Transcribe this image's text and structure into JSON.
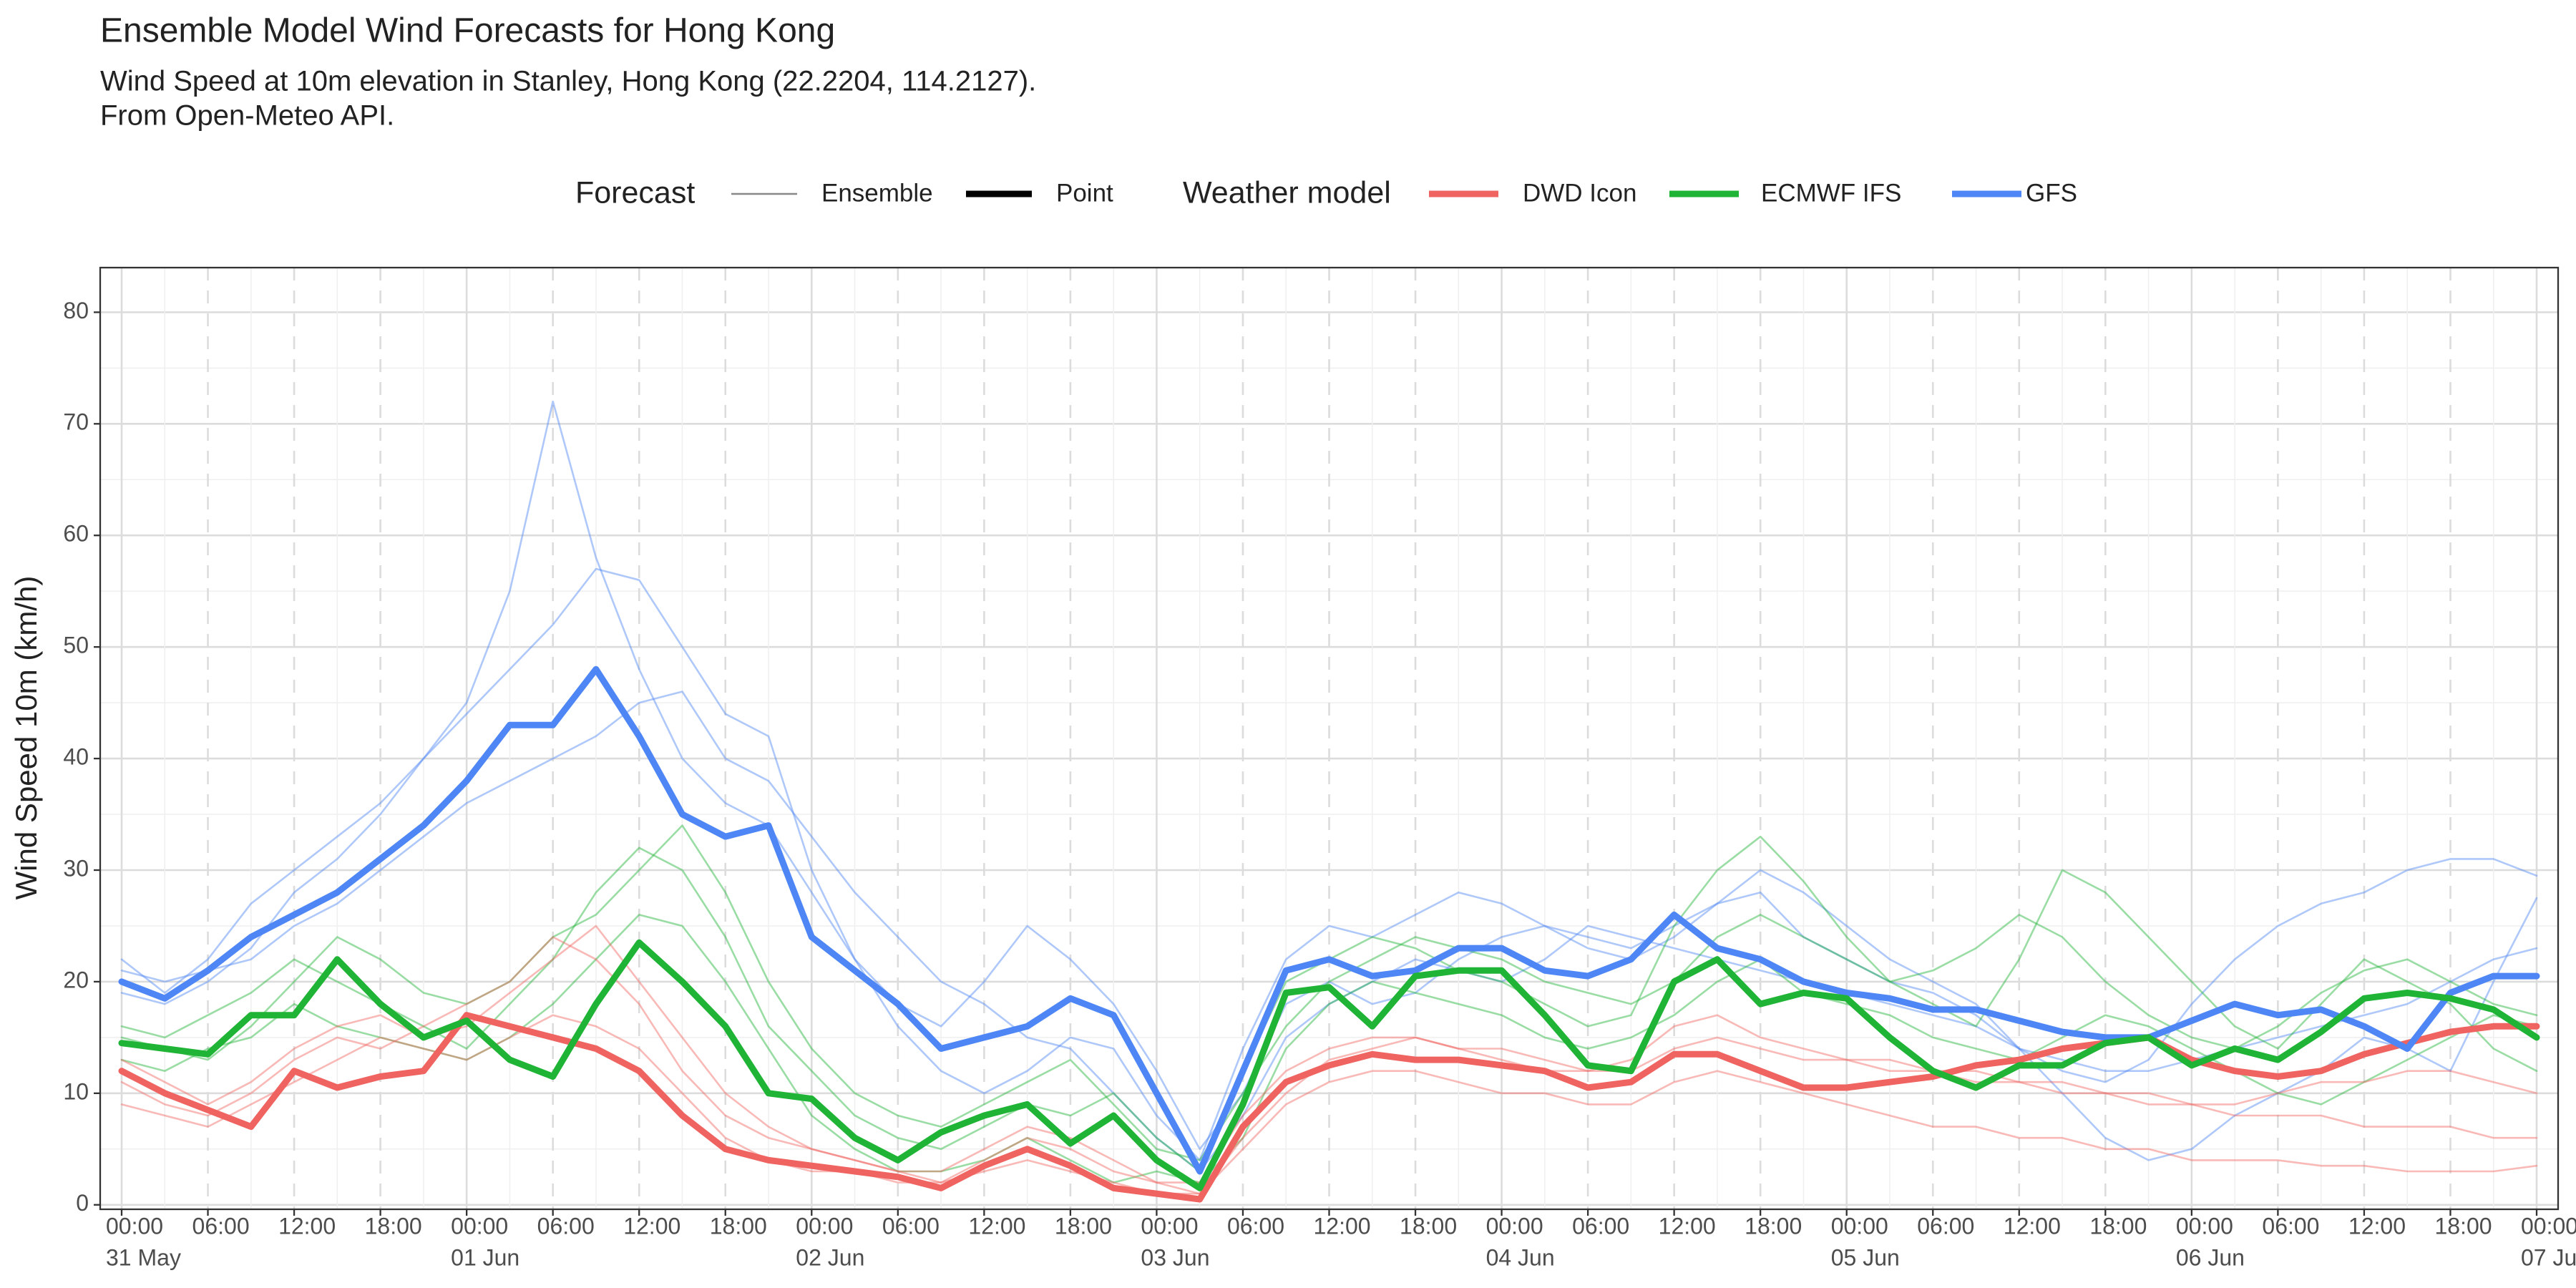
{
  "chart_data": {
    "type": "line",
    "title": "Ensemble Model Wind Forecasts for Hong Kong",
    "subtitle": [
      "Wind Speed at 10m elevation in Stanley, Hong Kong (22.2204, 114.2127).",
      "From Open-Meteo API."
    ],
    "y_label": "Wind Speed 10m (km/h)",
    "legend": {
      "forecast": {
        "title": "Forecast",
        "items": [
          "Ensemble",
          "Point"
        ]
      },
      "model": {
        "title": "Weather model",
        "items": [
          {
            "name": "DWD Icon",
            "color": "#ef6360"
          },
          {
            "name": "ECMWF IFS",
            "color": "#1fb436"
          },
          {
            "name": "GFS",
            "color": "#4e86f5"
          }
        ]
      }
    },
    "x": [
      "31 May 00:00",
      "31 May 03:00",
      "31 May 06:00",
      "31 May 09:00",
      "31 May 12:00",
      "31 May 15:00",
      "31 May 18:00",
      "31 May 21:00",
      "01 Jun 00:00",
      "01 Jun 03:00",
      "01 Jun 06:00",
      "01 Jun 09:00",
      "01 Jun 12:00",
      "01 Jun 15:00",
      "01 Jun 18:00",
      "01 Jun 21:00",
      "02 Jun 00:00",
      "02 Jun 03:00",
      "02 Jun 06:00",
      "02 Jun 09:00",
      "02 Jun 12:00",
      "02 Jun 15:00",
      "02 Jun 18:00",
      "02 Jun 21:00",
      "03 Jun 00:00",
      "03 Jun 03:00",
      "03 Jun 06:00",
      "03 Jun 09:00",
      "03 Jun 12:00",
      "03 Jun 15:00",
      "03 Jun 18:00",
      "03 Jun 21:00",
      "04 Jun 00:00",
      "04 Jun 03:00",
      "04 Jun 06:00",
      "04 Jun 09:00",
      "04 Jun 12:00",
      "04 Jun 15:00",
      "04 Jun 18:00",
      "04 Jun 21:00",
      "05 Jun 00:00",
      "05 Jun 03:00",
      "05 Jun 06:00",
      "05 Jun 09:00",
      "05 Jun 12:00",
      "05 Jun 15:00",
      "05 Jun 18:00",
      "05 Jun 21:00",
      "06 Jun 00:00",
      "06 Jun 03:00",
      "06 Jun 06:00",
      "06 Jun 09:00",
      "06 Jun 12:00",
      "06 Jun 15:00",
      "06 Jun 18:00",
      "06 Jun 21:00",
      "07 Jun 00:00"
    ],
    "xticks": [
      {
        "value": "31 May 00:00",
        "label": "00:00"
      },
      {
        "value": "31 May 06:00",
        "label": "06:00"
      },
      {
        "value": "31 May 12:00",
        "label": "12:00"
      },
      {
        "value": "31 May 18:00",
        "label": "18:00"
      },
      {
        "value": "01 Jun 00:00",
        "label": "00:00"
      },
      {
        "value": "01 Jun 06:00",
        "label": "06:00"
      },
      {
        "value": "01 Jun 12:00",
        "label": "12:00"
      },
      {
        "value": "01 Jun 18:00",
        "label": "18:00"
      },
      {
        "value": "02 Jun 00:00",
        "label": "00:00"
      },
      {
        "value": "02 Jun 06:00",
        "label": "06:00"
      },
      {
        "value": "02 Jun 12:00",
        "label": "12:00"
      },
      {
        "value": "02 Jun 18:00",
        "label": "18:00"
      },
      {
        "value": "03 Jun 00:00",
        "label": "00:00"
      },
      {
        "value": "03 Jun 06:00",
        "label": "06:00"
      },
      {
        "value": "03 Jun 12:00",
        "label": "12:00"
      },
      {
        "value": "03 Jun 18:00",
        "label": "18:00"
      },
      {
        "value": "04 Jun 00:00",
        "label": "00:00"
      },
      {
        "value": "04 Jun 06:00",
        "label": "06:00"
      },
      {
        "value": "04 Jun 12:00",
        "label": "12:00"
      },
      {
        "value": "04 Jun 18:00",
        "label": "18:00"
      },
      {
        "value": "05 Jun 00:00",
        "label": "00:00"
      },
      {
        "value": "05 Jun 06:00",
        "label": "06:00"
      },
      {
        "value": "05 Jun 12:00",
        "label": "12:00"
      },
      {
        "value": "05 Jun 18:00",
        "label": "18:00"
      },
      {
        "value": "06 Jun 00:00",
        "label": "00:00"
      },
      {
        "value": "06 Jun 06:00",
        "label": "06:00"
      },
      {
        "value": "06 Jun 12:00",
        "label": "12:00"
      },
      {
        "value": "06 Jun 18:00",
        "label": "18:00"
      },
      {
        "value": "07 Jun 00:00",
        "label": "00:00"
      }
    ],
    "x_date_labels": [
      {
        "value": "31 May 00:00",
        "label": "31 May"
      },
      {
        "value": "01 Jun 00:00",
        "label": "01 Jun"
      },
      {
        "value": "02 Jun 00:00",
        "label": "02 Jun"
      },
      {
        "value": "03 Jun 00:00",
        "label": "03 Jun"
      },
      {
        "value": "04 Jun 00:00",
        "label": "04 Jun"
      },
      {
        "value": "05 Jun 00:00",
        "label": "05 Jun"
      },
      {
        "value": "06 Jun 00:00",
        "label": "06 Jun"
      },
      {
        "value": "07 Jun 00:00",
        "label": "07 Jun"
      }
    ],
    "ylim": [
      -0.4,
      84
    ],
    "yticks": [
      0,
      10,
      20,
      30,
      40,
      50,
      60,
      70,
      80
    ],
    "grid": true,
    "series": [
      {
        "name": "GFS",
        "forecast": "Ensemble",
        "color": "#4e86f5",
        "values": [
          22,
          19,
          22,
          27,
          30,
          33,
          36,
          40,
          45,
          55,
          72,
          58,
          48,
          40,
          36,
          34,
          28,
          22,
          16,
          12,
          10,
          12,
          15,
          14,
          8,
          4,
          14,
          22,
          25,
          24,
          26,
          28,
          27,
          25,
          24,
          23,
          25,
          27,
          28,
          24,
          22,
          20,
          19,
          17,
          14,
          12,
          11,
          13,
          18,
          22,
          25,
          27,
          28,
          30,
          31,
          31,
          29.5
        ]
      },
      {
        "name": "GFS",
        "forecast": "Ensemble",
        "color": "#4e86f5",
        "values": [
          19,
          18,
          20,
          23,
          28,
          31,
          35,
          40,
          44,
          48,
          52,
          57,
          56,
          50,
          44,
          42,
          30,
          22,
          18,
          16,
          20,
          25,
          22,
          18,
          12,
          5,
          10,
          18,
          20,
          18,
          19,
          22,
          24,
          25,
          23,
          22,
          24,
          27,
          30,
          28,
          25,
          22,
          20,
          18,
          14,
          10,
          6,
          4,
          5,
          8,
          10,
          12,
          15,
          14,
          12,
          20,
          27.5
        ]
      },
      {
        "name": "GFS",
        "forecast": "Ensemble",
        "color": "#4e86f5",
        "values": [
          21,
          20,
          21,
          22,
          25,
          27,
          30,
          33,
          36,
          38,
          40,
          42,
          45,
          46,
          40,
          38,
          33,
          28,
          24,
          20,
          18,
          15,
          14,
          10,
          6,
          3,
          8,
          15,
          18,
          20,
          22,
          21,
          20,
          22,
          25,
          24,
          23,
          22,
          21,
          20,
          19,
          18,
          17,
          16,
          14,
          13,
          12,
          12,
          13,
          14,
          15,
          16,
          17,
          18,
          20,
          22,
          23
        ]
      },
      {
        "name": "ECMWF IFS",
        "forecast": "Ensemble",
        "color": "#1fb436",
        "values": [
          16,
          15,
          17,
          19,
          22,
          20,
          18,
          16,
          14,
          18,
          22,
          28,
          32,
          30,
          24,
          16,
          12,
          8,
          6,
          5,
          7,
          9,
          8,
          10,
          6,
          3,
          12,
          20,
          22,
          24,
          23,
          21,
          20,
          18,
          16,
          17,
          25,
          30,
          33,
          29,
          24,
          20,
          18,
          16,
          22,
          30,
          28,
          24,
          20,
          16,
          14,
          18,
          22,
          20,
          18,
          14,
          12
        ]
      },
      {
        "name": "ECMWF IFS",
        "forecast": "Ensemble",
        "color": "#1fb436",
        "values": [
          13,
          12,
          14,
          15,
          18,
          16,
          15,
          14,
          13,
          15,
          18,
          22,
          26,
          25,
          20,
          14,
          8,
          5,
          3,
          3,
          4,
          6,
          4,
          2,
          3,
          2,
          6,
          14,
          18,
          20,
          19,
          18,
          17,
          15,
          14,
          15,
          17,
          20,
          22,
          19,
          18,
          17,
          15,
          14,
          13,
          15,
          17,
          16,
          14,
          12,
          10,
          9,
          11,
          13,
          15,
          17,
          16
        ]
      },
      {
        "name": "ECMWF IFS",
        "forecast": "Ensemble",
        "color": "#1fb436",
        "values": [
          15,
          14,
          13,
          16,
          20,
          24,
          22,
          19,
          18,
          20,
          24,
          26,
          30,
          34,
          28,
          20,
          14,
          10,
          8,
          7,
          9,
          11,
          13,
          9,
          5,
          4,
          10,
          16,
          20,
          22,
          24,
          23,
          22,
          20,
          19,
          18,
          20,
          24,
          26,
          24,
          22,
          20,
          21,
          23,
          26,
          24,
          20,
          17,
          15,
          14,
          16,
          19,
          21,
          22,
          20,
          18,
          17
        ]
      },
      {
        "name": "DWD Icon",
        "forecast": "Ensemble",
        "color": "#ef6360",
        "values": [
          11,
          9,
          8,
          10,
          13,
          15,
          14,
          16,
          18,
          20,
          24,
          22,
          18,
          12,
          8,
          6,
          5,
          4,
          3,
          2,
          3,
          4,
          3,
          2,
          1,
          1,
          5,
          9,
          11,
          12,
          12,
          11,
          10,
          10,
          9,
          9,
          11,
          12,
          11,
          10,
          9,
          8,
          7,
          7,
          6,
          6,
          5,
          5,
          4,
          4,
          4,
          3.5,
          3.5,
          3,
          3,
          3,
          3.5
        ]
      },
      {
        "name": "DWD Icon",
        "forecast": "Ensemble",
        "color": "#ef6360",
        "values": [
          9,
          8,
          7,
          9,
          11,
          13,
          15,
          14,
          13,
          15,
          17,
          16,
          14,
          10,
          6,
          4,
          3,
          3,
          2,
          2,
          4,
          6,
          5,
          3,
          2,
          1,
          6,
          10,
          13,
          14,
          15,
          14,
          13,
          12,
          12,
          13,
          16,
          17,
          15,
          14,
          13,
          12,
          12,
          11,
          11,
          10,
          10,
          9,
          9,
          8,
          8,
          8,
          7,
          7,
          7,
          6,
          6
        ]
      },
      {
        "name": "DWD Icon",
        "forecast": "Ensemble",
        "color": "#ef6360",
        "values": [
          13,
          11,
          9,
          11,
          14,
          16,
          17,
          15,
          16,
          19,
          22,
          25,
          20,
          15,
          10,
          7,
          5,
          4,
          3,
          3,
          5,
          7,
          6,
          4,
          2,
          2,
          8,
          12,
          14,
          15,
          15,
          14,
          14,
          13,
          12,
          12,
          14,
          15,
          14,
          13,
          13,
          13,
          12,
          12,
          11,
          11,
          10,
          10,
          9,
          9,
          10,
          11,
          11,
          12,
          12,
          11,
          10
        ]
      },
      {
        "name": "DWD Icon",
        "forecast": "Point",
        "color": "#ef6360",
        "values": [
          12,
          10,
          8.5,
          7,
          12,
          10.5,
          11.5,
          12,
          17,
          16,
          15,
          14,
          12,
          8,
          5,
          4,
          3.5,
          3,
          2.5,
          1.5,
          3.5,
          5,
          3.5,
          1.5,
          1,
          0.5,
          7,
          11,
          12.5,
          13.5,
          13,
          13,
          12.5,
          12,
          10.5,
          11,
          13.5,
          13.5,
          12,
          10.5,
          10.5,
          11,
          11.5,
          12.5,
          13,
          14,
          14.5,
          15,
          13,
          12,
          11.5,
          12,
          13.5,
          14.5,
          15.5,
          16,
          16
        ]
      },
      {
        "name": "GFS",
        "forecast": "Point",
        "color": "#4e86f5",
        "values": [
          20,
          18.5,
          21,
          24,
          26,
          28,
          31,
          34,
          38,
          43,
          43,
          48,
          42,
          35,
          33,
          34,
          24,
          21,
          18,
          14,
          15,
          16,
          18.5,
          17,
          10,
          3,
          12,
          21,
          22,
          20.5,
          21,
          23,
          23,
          21,
          20.5,
          22,
          26,
          23,
          22,
          20,
          19,
          18.5,
          17.5,
          17.5,
          16.5,
          15.5,
          15,
          15,
          16.5,
          18,
          17,
          17.5,
          16,
          14,
          19,
          20.5,
          20.5
        ]
      },
      {
        "name": "ECMWF IFS",
        "forecast": "Point",
        "color": "#1fb436",
        "values": [
          14.5,
          14,
          13.5,
          17,
          17,
          22,
          18,
          15,
          16.5,
          13,
          11.5,
          18,
          23.5,
          20,
          16,
          10,
          9.5,
          6,
          4,
          6.5,
          8,
          9,
          5.5,
          8,
          4,
          1.5,
          9,
          19,
          19.5,
          16,
          20.5,
          21,
          21,
          17,
          12.5,
          12,
          20,
          22,
          18,
          19,
          18.5,
          15,
          12,
          10.5,
          12.5,
          12.5,
          14.5,
          15,
          12.5,
          14,
          13,
          15.5,
          18.5,
          19,
          18.5,
          17.5,
          15
        ]
      }
    ]
  }
}
